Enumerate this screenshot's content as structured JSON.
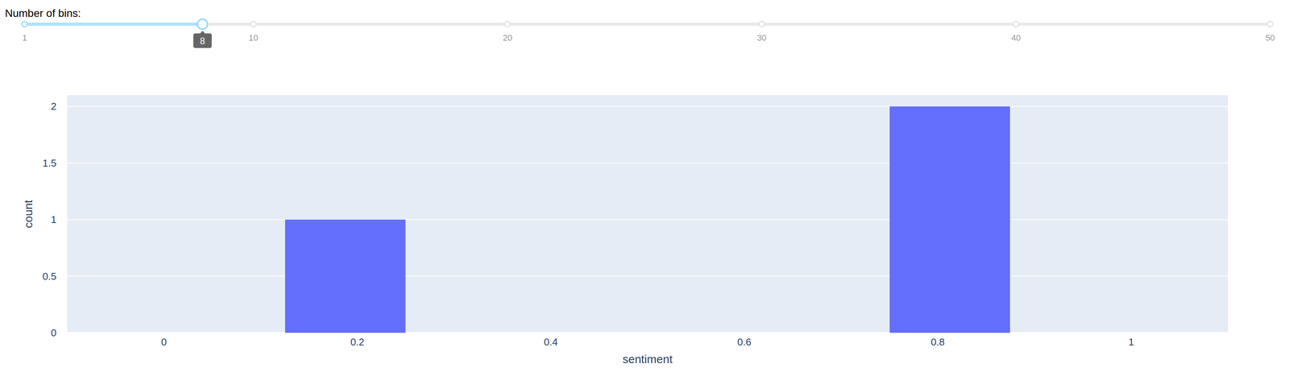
{
  "slider": {
    "label": "Number of bins:",
    "min": 1,
    "max": 50,
    "marks": [
      1,
      10,
      20,
      30,
      40,
      50
    ],
    "value": 8
  },
  "chart_data": {
    "type": "histogram",
    "x_label": "sentiment",
    "y_label": "count",
    "bins": [
      0,
      0.125,
      0.25,
      0.375,
      0.5,
      0.625,
      0.75,
      0.875,
      1
    ],
    "counts": [
      0,
      1,
      0,
      0,
      0,
      0,
      2,
      0
    ],
    "color": "#636efa",
    "xlim": [
      -0.1,
      1.1
    ],
    "xticks": [
      0,
      0.2,
      0.4,
      0.6,
      0.8,
      1
    ],
    "ylim": [
      0,
      2.1
    ],
    "yticks": [
      0,
      0.5,
      1,
      1.5,
      2
    ],
    "grid": true
  }
}
